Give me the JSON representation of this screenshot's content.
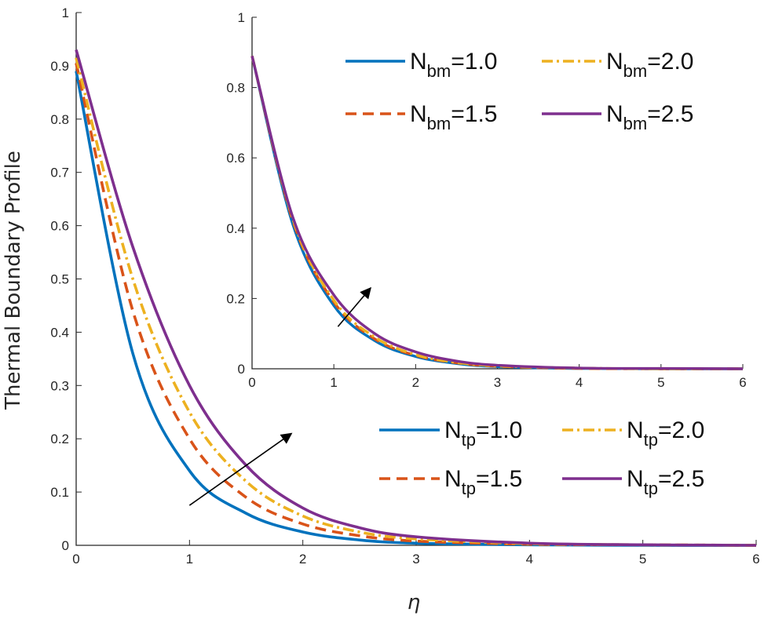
{
  "chart_data": [
    {
      "id": "main",
      "type": "line",
      "title": "",
      "xlabel": "η",
      "ylabel": "Thermal Boundary Profile",
      "xlim": [
        0,
        6
      ],
      "ylim": [
        0,
        1
      ],
      "xticks": [
        "0",
        "1",
        "2",
        "3",
        "4",
        "5",
        "6"
      ],
      "yticks": [
        "0",
        "0.1",
        "0.2",
        "0.3",
        "0.4",
        "0.5",
        "0.6",
        "0.7",
        "0.8",
        "0.9",
        "1"
      ],
      "grid": false,
      "legend_position": "lower-right",
      "x": [
        0,
        0.5,
        1,
        1.5,
        2,
        2.5,
        3,
        4,
        5,
        6
      ],
      "series": [
        {
          "name": "Ntp=1.0",
          "symbol": "N",
          "sub": "tp",
          "value": "=1.0",
          "color": "#0072BD",
          "dash": "solid",
          "values": [
            0.89,
            0.36,
            0.14,
            0.06,
            0.025,
            0.01,
            0.004,
            0.001,
            0,
            0
          ]
        },
        {
          "name": "Ntp=1.5",
          "symbol": "N",
          "sub": "tp",
          "value": "=1.5",
          "color": "#D95319",
          "dash": "dashed",
          "values": [
            0.905,
            0.44,
            0.2,
            0.09,
            0.04,
            0.018,
            0.008,
            0.002,
            0.001,
            0
          ]
        },
        {
          "name": "Ntp=2.0",
          "symbol": "N",
          "sub": "tp",
          "value": "=2.0",
          "color": "#EDB120",
          "dash": "dashdot",
          "values": [
            0.915,
            0.5,
            0.25,
            0.12,
            0.055,
            0.025,
            0.012,
            0.003,
            0.001,
            0
          ]
        },
        {
          "name": "Ntp=2.5",
          "symbol": "N",
          "sub": "tp",
          "value": "=2.5",
          "color": "#7E2F8E",
          "dash": "solid",
          "values": [
            0.93,
            0.56,
            0.3,
            0.15,
            0.07,
            0.033,
            0.016,
            0.004,
            0.001,
            0
          ]
        }
      ],
      "annotations": [
        {
          "type": "arrow",
          "from": [
            1,
            0.075
          ],
          "to": [
            1.9,
            0.21
          ],
          "meaning": "increasing Ntp"
        }
      ]
    },
    {
      "id": "inset",
      "type": "line",
      "title": "",
      "xlabel": "",
      "ylabel": "",
      "xlim": [
        0,
        6
      ],
      "ylim": [
        0,
        1
      ],
      "xticks": [
        "0",
        "1",
        "2",
        "3",
        "4",
        "5",
        "6"
      ],
      "yticks": [
        "0",
        "0.2",
        "0.4",
        "0.6",
        "0.8",
        "1"
      ],
      "grid": false,
      "legend_position": "top-right",
      "x": [
        0,
        0.5,
        1,
        1.5,
        2,
        2.5,
        3,
        4,
        5,
        6
      ],
      "series": [
        {
          "name": "Nbm=1.0",
          "symbol": "N",
          "sub": "bm",
          "value": "=1.0",
          "color": "#0072BD",
          "dash": "solid",
          "values": [
            0.89,
            0.41,
            0.18,
            0.08,
            0.035,
            0.015,
            0.006,
            0.001,
            0,
            0
          ]
        },
        {
          "name": "Nbm=1.5",
          "symbol": "N",
          "sub": "bm",
          "value": "=1.5",
          "color": "#D95319",
          "dash": "dashed",
          "values": [
            0.89,
            0.42,
            0.19,
            0.085,
            0.038,
            0.017,
            0.007,
            0.001,
            0,
            0
          ]
        },
        {
          "name": "Nbm=2.0",
          "symbol": "N",
          "sub": "bm",
          "value": "=2.0",
          "color": "#EDB120",
          "dash": "dashdot",
          "values": [
            0.89,
            0.425,
            0.195,
            0.09,
            0.04,
            0.018,
            0.008,
            0.002,
            0,
            0
          ]
        },
        {
          "name": "Nbm=2.5",
          "symbol": "N",
          "sub": "bm",
          "value": "=2.5",
          "color": "#7E2F8E",
          "dash": "solid",
          "values": [
            0.89,
            0.43,
            0.21,
            0.1,
            0.048,
            0.022,
            0.01,
            0.002,
            0.001,
            0
          ]
        }
      ],
      "annotations": [
        {
          "type": "arrow",
          "from": [
            1.05,
            0.12
          ],
          "to": [
            1.45,
            0.23
          ],
          "meaning": "increasing Nbm"
        }
      ]
    }
  ]
}
